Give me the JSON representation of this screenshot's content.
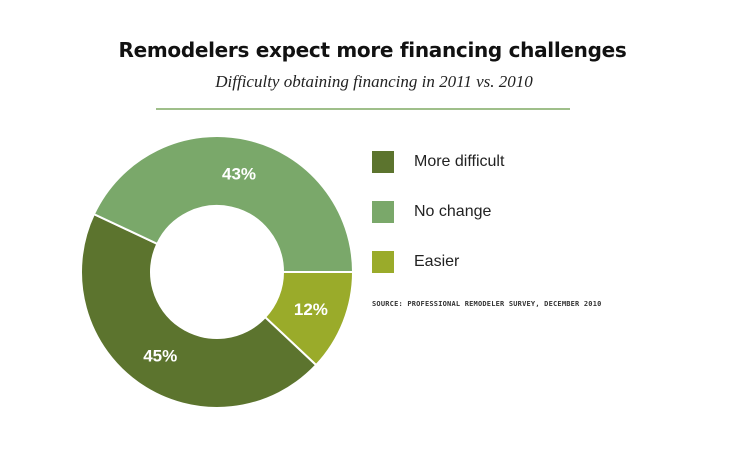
{
  "header": {
    "title": "Remodelers expect more financing challenges",
    "subtitle": "Difficulty obtaining financing in 2011 vs. 2010"
  },
  "source": "SOURCE: PROFESSIONAL REMODELER SURVEY, DECEMBER 2010",
  "colors": {
    "more_difficult": "#5c742e",
    "no_change": "#7aa86a",
    "easier": "#9aab2a",
    "rule": "#9fbf8a"
  },
  "chart_data": {
    "type": "pie",
    "donut": true,
    "legend": "right",
    "categories": [
      "More difficult",
      "No change",
      "Easier"
    ],
    "values": [
      45,
      43,
      12
    ],
    "data_labels": [
      "45%",
      "43%",
      "12%"
    ],
    "title": "Remodelers expect more financing challenges",
    "subtitle": "Difficulty obtaining financing in 2011 vs. 2010"
  }
}
